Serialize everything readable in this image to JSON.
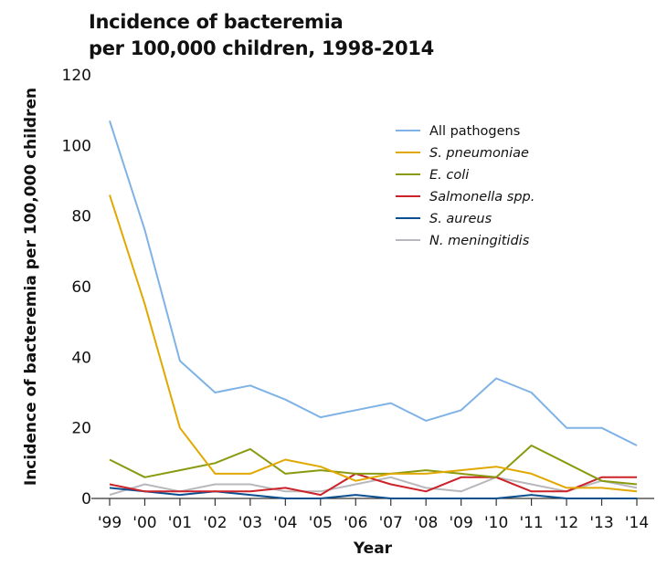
{
  "chart_data": {
    "type": "line",
    "title_lines": [
      "Incidence of bacteremia",
      "per 100,000 children, 1998-2014"
    ],
    "xlabel": "Year",
    "ylabel": "Incidence of bacteremia per 100,000 children",
    "categories": [
      "'99",
      "'00",
      "'01",
      "'02",
      "'03",
      "'04",
      "'05",
      "'06",
      "'07",
      "'08",
      "'09",
      "'10",
      "'11",
      "'12",
      "'13",
      "'14"
    ],
    "ylim": [
      0,
      120
    ],
    "yticks": [
      0,
      20,
      40,
      60,
      80,
      100,
      120
    ],
    "grid": false,
    "legend_position": "top-right",
    "series": [
      {
        "name": "All pathogens",
        "italic": false,
        "color": "#7fb2e5",
        "values": [
          107,
          76,
          39,
          30,
          32,
          28,
          23,
          25,
          27,
          22,
          25,
          34,
          30,
          20,
          20,
          15
        ]
      },
      {
        "name": "S. pneumoniae",
        "italic": true,
        "color": "#e0a800",
        "values": [
          86,
          55,
          20,
          7,
          7,
          11,
          9,
          5,
          7,
          7,
          8,
          9,
          7,
          3,
          3,
          2
        ]
      },
      {
        "name": "E. coli",
        "italic": true,
        "color": "#8a9a10",
        "values": [
          11,
          6,
          8,
          10,
          14,
          7,
          8,
          7,
          7,
          8,
          7,
          6,
          15,
          10,
          5,
          4
        ]
      },
      {
        "name": "Salmonella spp.",
        "italic": true,
        "color": "#cc2229",
        "values": [
          4,
          2,
          2,
          2,
          2,
          3,
          1,
          7,
          4,
          2,
          6,
          6,
          2,
          2,
          6,
          6
        ]
      },
      {
        "name": "S. aureus",
        "italic": true,
        "color": "#0a4f8f",
        "values": [
          3,
          2,
          1,
          2,
          1,
          0,
          0,
          1,
          0,
          0,
          0,
          0,
          1,
          0,
          0,
          0
        ]
      },
      {
        "name": "N. meningitidis",
        "italic": true,
        "color": "#b8b8bc",
        "values": [
          1,
          4,
          2,
          4,
          4,
          2,
          2,
          4,
          6,
          3,
          2,
          6,
          4,
          2,
          5,
          3
        ]
      }
    ]
  }
}
